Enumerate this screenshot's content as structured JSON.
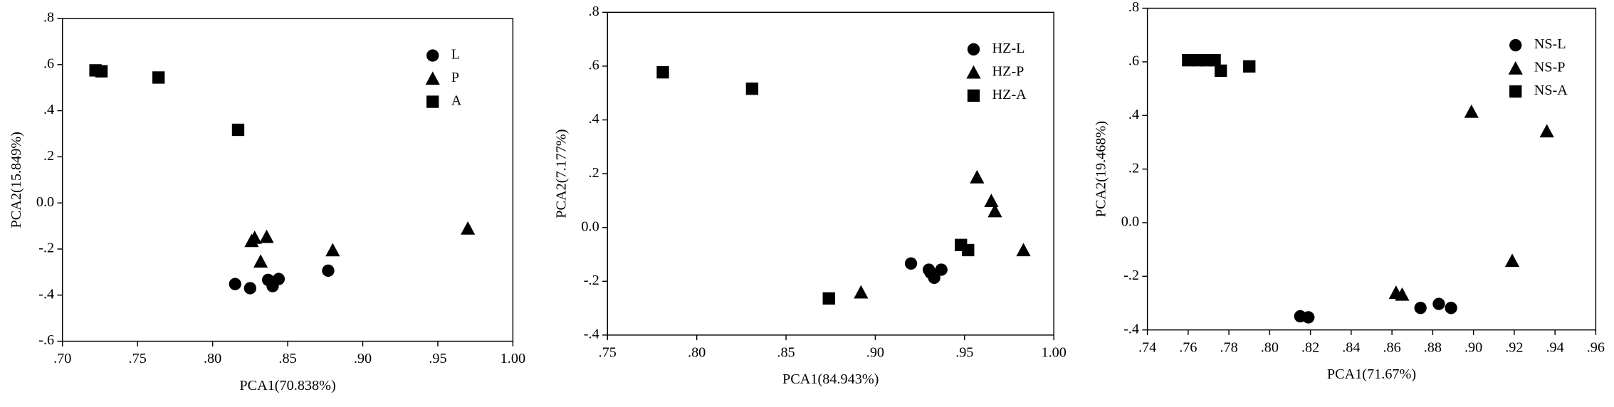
{
  "chart_data": [
    {
      "type": "scatter",
      "xlabel": "PCA1(70.838%)",
      "ylabel": "PCA2(15.849%)",
      "legend": "upper right",
      "xlim": [
        0.7,
        1.0
      ],
      "xticks": [
        {
          "value": 0.7,
          "label": ".70"
        },
        {
          "value": 0.75,
          "label": ".75"
        },
        {
          "value": 0.8,
          "label": ".80"
        },
        {
          "value": 0.85,
          "label": ".85"
        },
        {
          "value": 0.9,
          "label": ".90"
        },
        {
          "value": 0.95,
          "label": ".95"
        },
        {
          "value": 1.0,
          "label": "1.00"
        }
      ],
      "ylim": [
        -0.6,
        0.8
      ],
      "yticks": [
        {
          "value": -0.6,
          "label": "-.6"
        },
        {
          "value": -0.4,
          "label": "-.4"
        },
        {
          "value": -0.2,
          "label": "-.2"
        },
        {
          "value": 0,
          "label": "0.0"
        },
        {
          "value": 0.2,
          "label": ".2"
        },
        {
          "value": 0.4,
          "label": ".4"
        },
        {
          "value": 0.6,
          "label": ".6"
        },
        {
          "value": 0.8,
          "label": ".8"
        }
      ],
      "series": [
        {
          "name": "L",
          "marker": "circle",
          "color": "#000000",
          "x": [
            0.815,
            0.825,
            0.837,
            0.84,
            0.844,
            0.877
          ],
          "values": [
            -0.352,
            -0.37,
            -0.334,
            -0.361,
            -0.33,
            -0.294
          ]
        },
        {
          "name": "P",
          "marker": "triangle",
          "color": "#000000",
          "x": [
            0.826,
            0.828,
            0.836,
            0.832,
            0.88,
            0.97
          ],
          "values": [
            -0.165,
            -0.151,
            -0.147,
            -0.254,
            -0.205,
            -0.111
          ]
        },
        {
          "name": "A",
          "marker": "square",
          "color": "#000000",
          "x": [
            0.722,
            0.726,
            0.764,
            0.817
          ],
          "values": [
            0.575,
            0.571,
            0.544,
            0.317
          ]
        }
      ]
    },
    {
      "type": "scatter",
      "xlabel": "PCA1(84.943%)",
      "ylabel": "PCA2(7.177%)",
      "legend": "upper right",
      "xlim": [
        0.75,
        1.0
      ],
      "xticks": [
        {
          "value": 0.75,
          "label": ".75"
        },
        {
          "value": 0.8,
          "label": ".80"
        },
        {
          "value": 0.85,
          "label": ".85"
        },
        {
          "value": 0.9,
          "label": ".90"
        },
        {
          "value": 0.95,
          "label": ".95"
        },
        {
          "value": 1.0,
          "label": "1.00"
        }
      ],
      "ylim": [
        -0.4,
        0.8
      ],
      "yticks": [
        {
          "value": -0.4,
          "label": "-.4"
        },
        {
          "value": -0.2,
          "label": "-.2"
        },
        {
          "value": 0,
          "label": "0.0"
        },
        {
          "value": 0.2,
          "label": ".2"
        },
        {
          "value": 0.4,
          "label": ".4"
        },
        {
          "value": 0.6,
          "label": ".6"
        },
        {
          "value": 0.8,
          "label": ".8"
        }
      ],
      "series": [
        {
          "name": "HZ-L",
          "marker": "circle",
          "color": "#000000",
          "x": [
            0.92,
            0.931,
            0.933,
            0.937,
            0.93
          ],
          "values": [
            -0.134,
            -0.168,
            -0.187,
            -0.157,
            -0.157
          ]
        },
        {
          "name": "HZ-P",
          "marker": "triangle",
          "color": "#000000",
          "x": [
            0.892,
            0.957,
            0.965,
            0.967,
            0.983
          ],
          "values": [
            -0.241,
            0.187,
            0.099,
            0.061,
            -0.084
          ]
        },
        {
          "name": "HZ-A",
          "marker": "square",
          "color": "#000000",
          "x": [
            0.781,
            0.831,
            0.874,
            0.948,
            0.952
          ],
          "values": [
            0.577,
            0.516,
            -0.264,
            -0.065,
            -0.084
          ]
        }
      ]
    },
    {
      "type": "scatter",
      "xlabel": "PCA1(71.67%)",
      "ylabel": "PCA2(19.468%)",
      "legend": "upper right",
      "xlim": [
        0.74,
        0.96
      ],
      "xticks": [
        {
          "value": 0.74,
          "label": ".74"
        },
        {
          "value": 0.76,
          "label": ".76"
        },
        {
          "value": 0.78,
          "label": ".78"
        },
        {
          "value": 0.8,
          "label": ".80"
        },
        {
          "value": 0.82,
          "label": ".82"
        },
        {
          "value": 0.84,
          "label": ".84"
        },
        {
          "value": 0.86,
          "label": ".86"
        },
        {
          "value": 0.88,
          "label": ".88"
        },
        {
          "value": 0.9,
          "label": ".90"
        },
        {
          "value": 0.92,
          "label": ".92"
        },
        {
          "value": 0.94,
          "label": ".94"
        },
        {
          "value": 0.96,
          "label": ".96"
        }
      ],
      "ylim": [
        -0.4,
        0.8
      ],
      "yticks": [
        {
          "value": -0.4,
          "label": "-.4"
        },
        {
          "value": -0.2,
          "label": "-.2"
        },
        {
          "value": 0,
          "label": "0.0"
        },
        {
          "value": 0.2,
          "label": ".2"
        },
        {
          "value": 0.4,
          "label": ".4"
        },
        {
          "value": 0.6,
          "label": ".6"
        },
        {
          "value": 0.8,
          "label": ".8"
        }
      ],
      "series": [
        {
          "name": "NS-L",
          "marker": "circle",
          "color": "#000000",
          "x": [
            0.815,
            0.819,
            0.874,
            0.883,
            0.889
          ],
          "values": [
            -0.349,
            -0.353,
            -0.318,
            -0.303,
            -0.318
          ]
        },
        {
          "name": "NS-P",
          "marker": "triangle",
          "color": "#000000",
          "x": [
            0.862,
            0.865,
            0.899,
            0.919,
            0.936
          ],
          "values": [
            -0.261,
            -0.268,
            0.414,
            -0.142,
            0.341
          ]
        },
        {
          "name": "NS-A",
          "marker": "square",
          "color": "#000000",
          "x": [
            0.76,
            0.765,
            0.769,
            0.773,
            0.776,
            0.79
          ],
          "values": [
            0.606,
            0.606,
            0.606,
            0.606,
            0.567,
            0.583
          ]
        }
      ]
    }
  ]
}
